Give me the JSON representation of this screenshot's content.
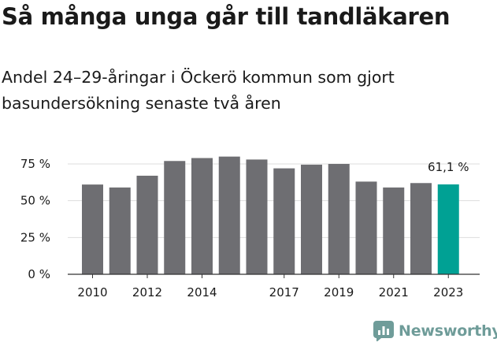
{
  "title": "Så många unga går till tandläkaren",
  "subtitle": "Andel 24–29-åringar i Öckerö kommun som gjort basundersökning senaste två åren",
  "brand": {
    "name": "Newsworthy",
    "logo_icon": "newsworthy-chart-logo-icon"
  },
  "colors": {
    "bar": "#6e6e72",
    "highlight": "#00a194",
    "grid": "#dddddd",
    "axis": "#333333",
    "text": "#1a1a1a",
    "brand": "#6f9c99"
  },
  "chart_data": {
    "type": "bar",
    "title": "Så många unga går till tandläkaren",
    "subtitle": "Andel 24–29-åringar i Öckerö kommun som gjort basundersökning senaste två åren",
    "categories": [
      "2010",
      "2011",
      "2012",
      "2013",
      "2014",
      "2015",
      "2016",
      "2017",
      "2018",
      "2019",
      "2020",
      "2021",
      "2022",
      "2023"
    ],
    "x_tick_labels": [
      "2010",
      "",
      "2012",
      "",
      "2014",
      "",
      "",
      "2017",
      "",
      "2019",
      "",
      "2021",
      "",
      "2023"
    ],
    "values": [
      61,
      59,
      67,
      77,
      79,
      80,
      78,
      72,
      74.5,
      75,
      63,
      59,
      62,
      61.1
    ],
    "y_ticks": [
      0,
      25,
      50,
      75
    ],
    "y_tick_labels": [
      "0 %",
      "25 %",
      "50 %",
      "75 %"
    ],
    "ylim": [
      0,
      80
    ],
    "grid": true,
    "highlight_index": 13,
    "annotation": "61,1 %"
  }
}
